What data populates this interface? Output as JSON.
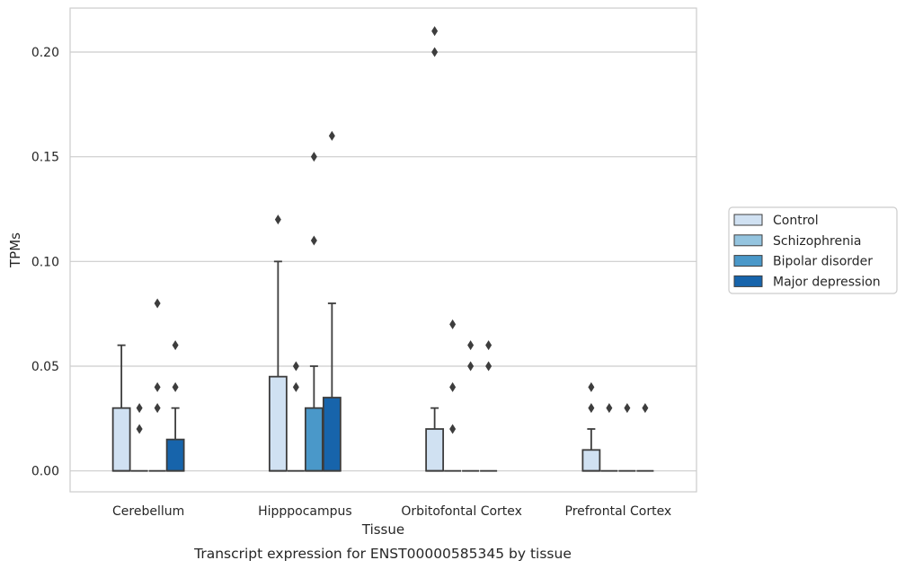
{
  "chart_data": {
    "type": "box",
    "caption": "Transcript expression for ENST00000585345 by tissue",
    "xlabel": "Tissue",
    "ylabel": "TPMs",
    "ylim": [
      -0.01,
      0.221
    ],
    "yticks": [
      0.0,
      0.05,
      0.1,
      0.15,
      0.2
    ],
    "ytick_labels": [
      "0.00",
      "0.05",
      "0.10",
      "0.15",
      "0.20"
    ],
    "grid": "horizontal",
    "legend_position": "right",
    "categories": [
      "Cerebellum",
      "Hipppocampus",
      "Orbitofontal Cortex",
      "Prefrontal Cortex"
    ],
    "series": [
      {
        "name": "Control",
        "color": "#d0e1f2",
        "boxes": [
          {
            "q1": 0.0,
            "median": 0.0,
            "q3": 0.03,
            "whisker_low": 0.0,
            "whisker_high": 0.06,
            "outliers": []
          },
          {
            "q1": 0.0,
            "median": 0.0,
            "q3": 0.045,
            "whisker_low": 0.0,
            "whisker_high": 0.1,
            "outliers": [
              0.12
            ]
          },
          {
            "q1": 0.0,
            "median": 0.0,
            "q3": 0.02,
            "whisker_low": 0.0,
            "whisker_high": 0.03,
            "outliers": [
              0.2,
              0.21
            ]
          },
          {
            "q1": 0.0,
            "median": 0.0,
            "q3": 0.01,
            "whisker_low": 0.0,
            "whisker_high": 0.02,
            "outliers": [
              0.03,
              0.04
            ]
          }
        ]
      },
      {
        "name": "Schizophrenia",
        "color": "#94c4df",
        "boxes": [
          {
            "q1": 0.0,
            "median": 0.0,
            "q3": 0.0,
            "whisker_low": 0.0,
            "whisker_high": 0.0,
            "outliers": [
              0.02,
              0.03
            ]
          },
          {
            "q1": 0.0,
            "median": 0.0,
            "q3": 0.0,
            "whisker_low": 0.0,
            "whisker_high": 0.0,
            "outliers": [
              0.04,
              0.05
            ]
          },
          {
            "q1": 0.0,
            "median": 0.0,
            "q3": 0.0,
            "whisker_low": 0.0,
            "whisker_high": 0.0,
            "outliers": [
              0.02,
              0.04,
              0.07
            ]
          },
          {
            "q1": 0.0,
            "median": 0.0,
            "q3": 0.0,
            "whisker_low": 0.0,
            "whisker_high": 0.0,
            "outliers": [
              0.03
            ]
          }
        ]
      },
      {
        "name": "Bipolar disorder",
        "color": "#4a98c9",
        "boxes": [
          {
            "q1": 0.0,
            "median": 0.0,
            "q3": 0.0,
            "whisker_low": 0.0,
            "whisker_high": 0.0,
            "outliers": [
              0.03,
              0.04,
              0.08
            ]
          },
          {
            "q1": 0.0,
            "median": 0.0,
            "q3": 0.03,
            "whisker_low": 0.0,
            "whisker_high": 0.05,
            "outliers": [
              0.11,
              0.15
            ]
          },
          {
            "q1": 0.0,
            "median": 0.0,
            "q3": 0.0,
            "whisker_low": 0.0,
            "whisker_high": 0.0,
            "outliers": [
              0.05,
              0.06
            ]
          },
          {
            "q1": 0.0,
            "median": 0.0,
            "q3": 0.0,
            "whisker_low": 0.0,
            "whisker_high": 0.0,
            "outliers": [
              0.03
            ]
          }
        ]
      },
      {
        "name": "Major depression",
        "color": "#1764ab",
        "boxes": [
          {
            "q1": 0.0,
            "median": 0.0,
            "q3": 0.015,
            "whisker_low": 0.0,
            "whisker_high": 0.03,
            "outliers": [
              0.04,
              0.06
            ]
          },
          {
            "q1": 0.0,
            "median": 0.0,
            "q3": 0.035,
            "whisker_low": 0.0,
            "whisker_high": 0.08,
            "outliers": [
              0.16
            ]
          },
          {
            "q1": 0.0,
            "median": 0.0,
            "q3": 0.0,
            "whisker_low": 0.0,
            "whisker_high": 0.0,
            "outliers": [
              0.05,
              0.06
            ]
          },
          {
            "q1": 0.0,
            "median": 0.0,
            "q3": 0.0,
            "whisker_low": 0.0,
            "whisker_high": 0.0,
            "outliers": [
              0.03
            ]
          }
        ]
      }
    ]
  }
}
